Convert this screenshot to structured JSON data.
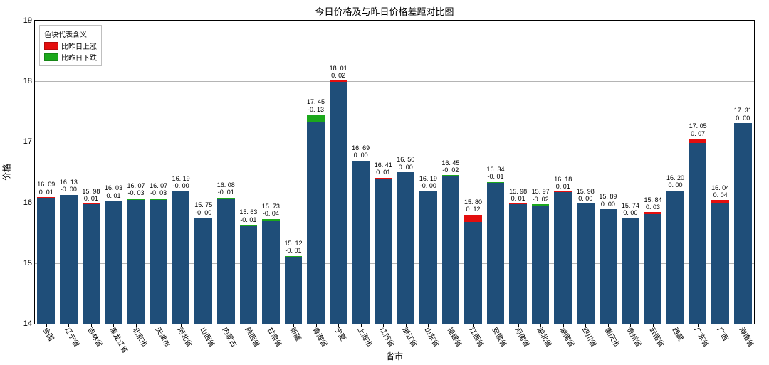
{
  "chart": {
    "type": "bar",
    "title": "今日价格及与昨日价格差距对比图",
    "title_fontsize": 13,
    "xlabel": "省市",
    "ylabel": "价格",
    "label_fontsize": 12,
    "ylim": [
      14,
      19
    ],
    "yticks": [
      14,
      15,
      16,
      17,
      18,
      19
    ],
    "background_color": "#ffffff",
    "grid_color": "#b4b4b4",
    "bar_width_ratio": 0.78,
    "base_color": "#1f4e79",
    "up_color": "#e30e0e",
    "down_color": "#1ca81c",
    "tick_fontsize": 11,
    "value_label_fontsize": 9,
    "xlabel_rotation": 60,
    "legend": {
      "title": "色块代表含义",
      "items": [
        {
          "label": "比昨日上涨",
          "color": "#e30e0e"
        },
        {
          "label": "比昨日下跌",
          "color": "#1ca81c"
        }
      ],
      "position": "upper-left"
    },
    "categories": [
      "全国",
      "辽宁省",
      "吉林省",
      "黑龙江省",
      "北京市",
      "天津市",
      "河北省",
      "山西省",
      "内蒙古",
      "陕西省",
      "甘肃省",
      "新疆",
      "青海省",
      "宁夏",
      "上海市",
      "江苏省",
      "浙江省",
      "山东省",
      "福建省",
      "江西省",
      "安徽省",
      "河南省",
      "湖北省",
      "湖南省",
      "四川省",
      "重庆市",
      "贵州省",
      "云南省",
      "西藏",
      "广东省",
      "广西",
      "海南省"
    ],
    "values": [
      16.09,
      16.13,
      15.98,
      16.03,
      16.07,
      16.07,
      16.19,
      15.75,
      16.08,
      15.63,
      15.73,
      15.12,
      17.45,
      18.01,
      16.69,
      16.41,
      16.5,
      16.19,
      16.45,
      15.8,
      16.34,
      15.98,
      15.97,
      16.18,
      15.98,
      15.89,
      15.74,
      15.84,
      16.2,
      17.05,
      16.04,
      17.31
    ],
    "deltas": [
      0.01,
      -0.0,
      0.01,
      0.01,
      -0.03,
      -0.03,
      -0.0,
      -0.0,
      -0.01,
      -0.01,
      -0.04,
      -0.01,
      -0.13,
      0.02,
      0.0,
      0.01,
      0.0,
      -0.0,
      -0.02,
      0.12,
      -0.01,
      0.01,
      -0.02,
      0.01,
      0.0,
      0.0,
      0.0,
      0.03,
      0.0,
      0.07,
      0.04,
      0.0
    ],
    "delta_raw_labels": [
      "0. 01",
      "-0. 00",
      "0. 01",
      "0. 01",
      "-0. 03",
      "-0. 03",
      "-0. 00",
      "-0. 00",
      "-0. 01",
      "-0. 01",
      "-0. 04",
      "-0. 01",
      "-0. 13",
      "0. 02",
      "0. 00",
      "0. 01",
      "0. 00",
      "-0. 00",
      "-0. 02",
      "0. 12",
      "-0. 01",
      "0. 01",
      "-0. 02",
      "0. 01",
      "0. 00",
      "0. 00",
      "0. 00",
      "0. 03",
      "0. 00",
      "0. 07",
      "0. 04",
      "0. 00"
    ],
    "value_labels": [
      "16. 09",
      "16. 13",
      "15. 98",
      "16. 03",
      "16. 07",
      "16. 07",
      "16. 19",
      "15. 75",
      "16. 08",
      "15. 63",
      "15. 73",
      "15. 12",
      "17. 45",
      "18. 01",
      "16. 69",
      "16. 41",
      "16. 50",
      "16. 19",
      "16. 45",
      "15. 80",
      "16. 34",
      "15. 98",
      "15. 97",
      "16. 18",
      "15. 98",
      "15. 89",
      "15. 74",
      "15. 84",
      "16. 20",
      "17. 05",
      "16. 04",
      "17. 31"
    ]
  }
}
